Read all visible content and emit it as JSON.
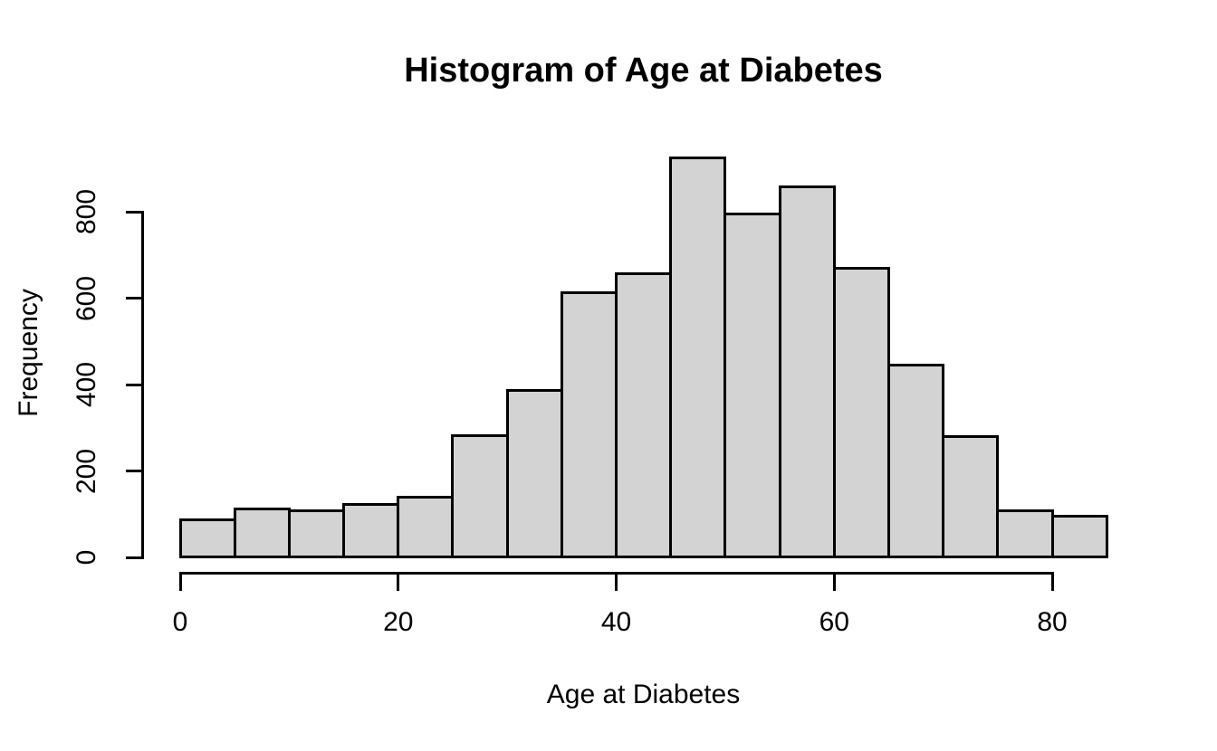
{
  "chart_data": {
    "type": "bar",
    "subtype": "histogram",
    "title": "Histogram of Age at Diabetes",
    "xlabel": "Age at Diabetes",
    "ylabel": "Frequency",
    "bin_edges": [
      0,
      5,
      10,
      15,
      20,
      25,
      30,
      35,
      40,
      45,
      50,
      55,
      60,
      65,
      70,
      75,
      80,
      85
    ],
    "categories": [
      "0-5",
      "5-10",
      "10-15",
      "15-20",
      "20-25",
      "25-30",
      "30-35",
      "35-40",
      "40-45",
      "45-50",
      "50-55",
      "55-60",
      "60-65",
      "65-70",
      "70-75",
      "75-80",
      "80-85"
    ],
    "values": [
      86,
      111,
      108,
      123,
      140,
      281,
      386,
      613,
      656,
      924,
      794,
      857,
      670,
      446,
      279,
      107,
      96
    ],
    "x_ticks": [
      0,
      20,
      40,
      60,
      80
    ],
    "y_ticks": [
      0,
      200,
      400,
      600,
      800
    ],
    "xlim": [
      0,
      85
    ],
    "ylim": [
      0,
      925
    ],
    "grid": false,
    "legend": false,
    "colors": {
      "bar_fill": "#d3d3d3",
      "bar_border": "#000000",
      "axis": "#000000",
      "text": "#000000",
      "background": "#ffffff"
    }
  }
}
